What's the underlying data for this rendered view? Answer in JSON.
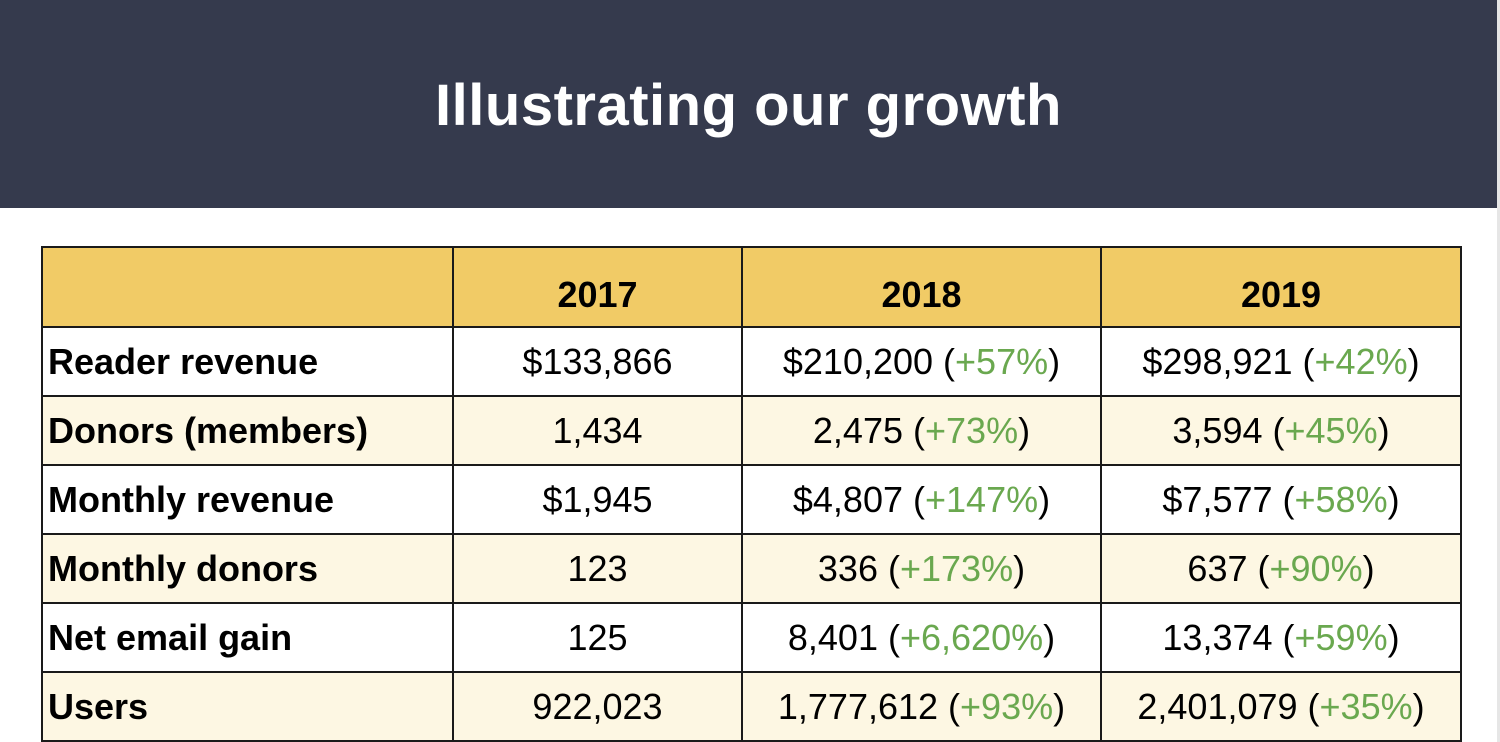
{
  "title": "Illustrating our growth",
  "table": {
    "headers": [
      "",
      "2017",
      "2018",
      "2019"
    ],
    "rows": [
      {
        "metric": "Reader revenue",
        "v2017": "$133,866",
        "v2018": "$210,200",
        "g2018": "+57%",
        "v2019": "$298,921",
        "g2019": "+42%"
      },
      {
        "metric": "Donors (members)",
        "v2017": "1,434",
        "v2018": "2,475",
        "g2018": "+73%",
        "v2019": "3,594",
        "g2019": "+45%"
      },
      {
        "metric": "Monthly revenue",
        "v2017": "$1,945",
        "v2018": "$4,807",
        "g2018": "+147%",
        "v2019": "$7,577",
        "g2019": "+58%"
      },
      {
        "metric": "Monthly donors",
        "v2017": "123",
        "v2018": "336",
        "g2018": "+173%",
        "v2019": "637",
        "g2019": "+90%"
      },
      {
        "metric": "Net email gain",
        "v2017": "125",
        "v2018": "8,401",
        "g2018": "+6,620%",
        "v2019": "13,374",
        "g2019": "+59%"
      },
      {
        "metric": "Users",
        "v2017": "922,023",
        "v2018": "1,777,612",
        "g2018": "+93%",
        "v2019": "2,401,079",
        "g2019": "+35%"
      }
    ]
  },
  "colors": {
    "banner": "#353a4d",
    "header_fill": "#f1cb66",
    "alt_row_fill": "#fdf7e3",
    "growth_text": "#6aa84f"
  }
}
